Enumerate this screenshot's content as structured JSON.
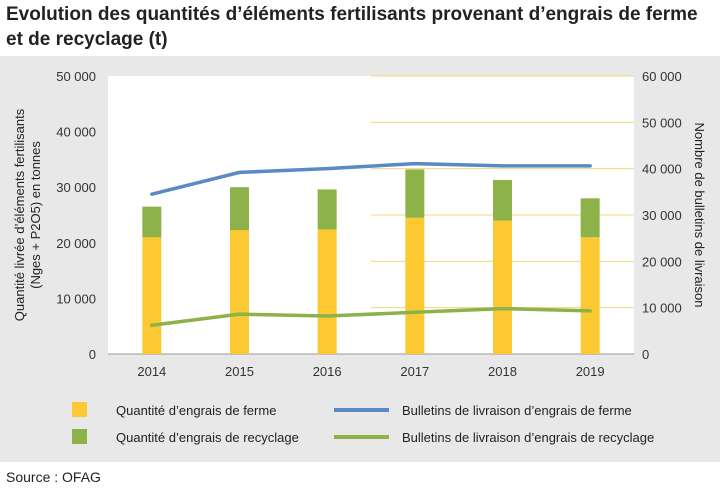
{
  "title": "Evolution des quantités d’éléments fertilisants provenant d’engrais de ferme et de recyclage (t)",
  "source": "Source : OFAG",
  "colors": {
    "farm_bar": "#fcc933",
    "recycle_bar": "#8db249",
    "farm_line": "#5b89c6",
    "recycle_line": "#8db249",
    "gridline": "#f1d97a",
    "panel_bg": "#e8e8e8",
    "plot_bg": "#ffffff"
  },
  "chart_data": {
    "type": "bar",
    "categories": [
      "2014",
      "2015",
      "2016",
      "2017",
      "2018",
      "2019"
    ],
    "y_left": {
      "label": "Quantité livrée d’éléments fertilisants (Nges + P2O5) en tonnes",
      "ylim": [
        0,
        50000
      ],
      "ticks": [
        "0",
        "10 000",
        "20 000",
        "30 000",
        "40 000",
        "50 000"
      ],
      "tick_values": [
        0,
        10000,
        20000,
        30000,
        40000,
        50000
      ]
    },
    "y_right": {
      "label": "Nombre de bulletins de livraison",
      "ylim": [
        0,
        60000
      ],
      "ticks": [
        "0",
        "10 000",
        "20 000",
        "30 000",
        "40 000",
        "50 000",
        "60 000"
      ],
      "tick_values": [
        0,
        10000,
        20000,
        30000,
        40000,
        50000,
        60000
      ]
    },
    "stacked_bars": [
      {
        "name": "Quantité d’engrais de ferme",
        "axis": "left",
        "values": [
          21000,
          22300,
          22400,
          24500,
          24000,
          21000
        ]
      },
      {
        "name": "Quantité d’engrais de recyclage",
        "axis": "left",
        "values": [
          5500,
          7700,
          7200,
          8700,
          7300,
          7000
        ]
      }
    ],
    "lines": [
      {
        "name": "Bulletins de livraison d’engrais de ferme",
        "axis": "right",
        "values": [
          34500,
          39200,
          40000,
          41100,
          40600,
          40600
        ]
      },
      {
        "name": "Bulletins de livraison d’engrais de recyclage",
        "axis": "right",
        "values": [
          6200,
          8600,
          8200,
          9000,
          9800,
          9300
        ]
      }
    ],
    "grid": true,
    "legend_position": "bottom"
  }
}
